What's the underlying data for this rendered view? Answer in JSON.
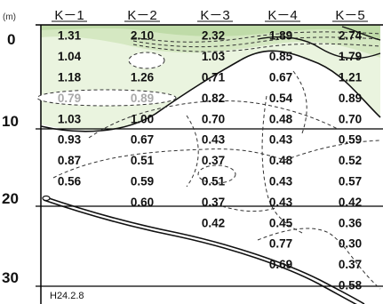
{
  "unit_label": "(m)",
  "depth_labels": [
    "0",
    "10",
    "20",
    "30"
  ],
  "stations": [
    "K－1",
    "K－2",
    "K－3",
    "K－4",
    "K－5"
  ],
  "date_label": "H24.2.8",
  "colors": {
    "band_dark": "#bfdba8",
    "band_mid": "#d5e8c2",
    "band_light": "#eaf4df",
    "frame": "#000000",
    "contour": "#333333",
    "faded_text": "#a9a9a9"
  },
  "rows": [
    {
      "depth": 1,
      "values": [
        "1.31",
        "2.10",
        "2.32",
        "1.89",
        "2.74"
      ]
    },
    {
      "depth": 3,
      "values": [
        "1.04",
        "",
        "1.03",
        "0.85",
        "1.79"
      ]
    },
    {
      "depth": 5,
      "values": [
        "1.18",
        "1.26",
        "0.71",
        "0.67",
        "1.21"
      ]
    },
    {
      "depth": 7,
      "values": [
        "0.79",
        "0.89",
        "0.82",
        "0.54",
        "0.89"
      ]
    },
    {
      "depth": 9,
      "values": [
        "1.03",
        "1.00",
        "0.70",
        "0.48",
        "0.70"
      ]
    },
    {
      "depth": 11,
      "values": [
        "0.93",
        "0.67",
        "0.43",
        "0.43",
        "0.59"
      ]
    },
    {
      "depth": 13,
      "values": [
        "0.87",
        "0.51",
        "0.37",
        "0.48",
        "0.52"
      ]
    },
    {
      "depth": 15,
      "values": [
        "0.56",
        "0.59",
        "0.51",
        "0.43",
        "0.57"
      ]
    },
    {
      "depth": 17,
      "values": [
        "",
        "0.60",
        "0.37",
        "0.43",
        "0.42"
      ]
    },
    {
      "depth": 19,
      "values": [
        "",
        "",
        "0.42",
        "0.45",
        "0.36"
      ]
    },
    {
      "depth": 21,
      "values": [
        "",
        "",
        "",
        "0.77",
        "0.30"
      ]
    },
    {
      "depth": 23,
      "values": [
        "",
        "",
        "",
        "0.69",
        "0.37"
      ]
    },
    {
      "depth": 25,
      "values": [
        "",
        "",
        "",
        "",
        "0.58"
      ]
    }
  ]
}
